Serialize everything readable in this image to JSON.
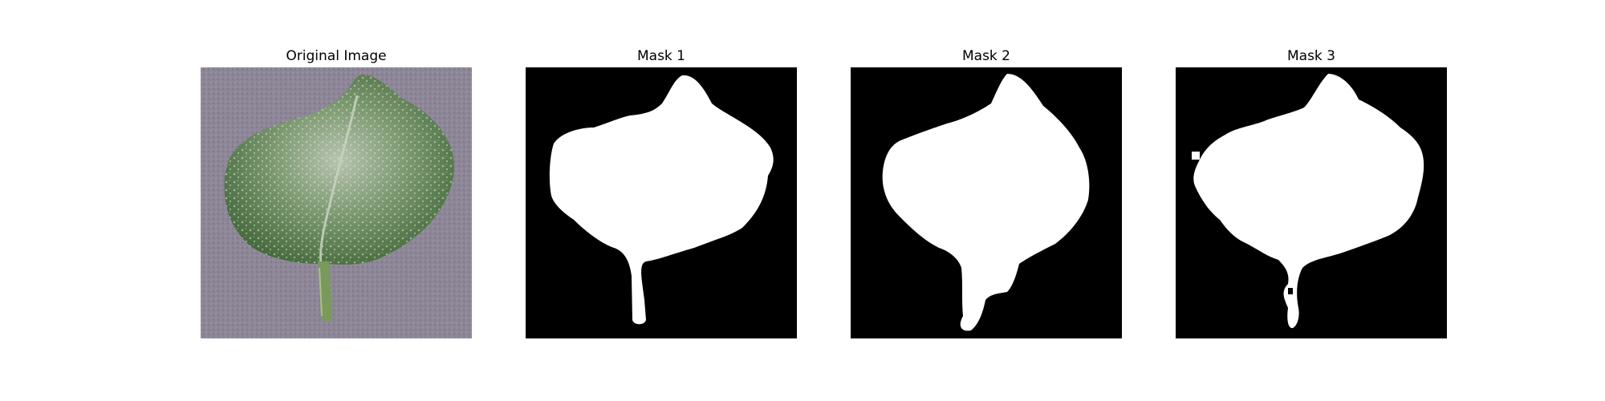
{
  "figure": {
    "panels": [
      {
        "title": "Original Image"
      },
      {
        "title": "Mask 1"
      },
      {
        "title": "Mask 2"
      },
      {
        "title": "Mask 3"
      }
    ]
  },
  "colors": {
    "background": "#ffffff",
    "mask_background": "#000000",
    "mask_foreground": "#ffffff",
    "leaf_green": "#5a7f4a",
    "surface_gray": "#8e8796"
  }
}
